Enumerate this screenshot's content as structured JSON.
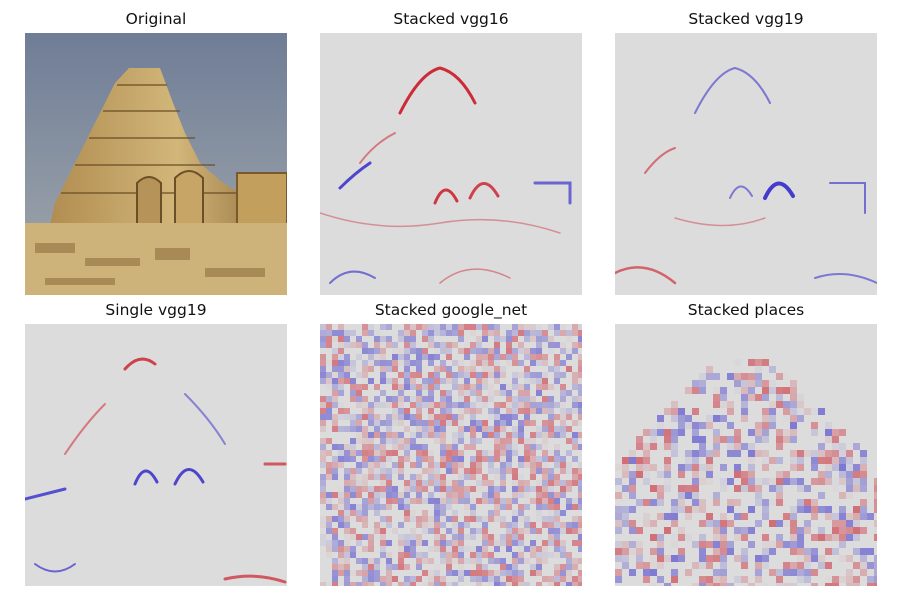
{
  "panels": [
    {
      "title": "Original"
    },
    {
      "title": "Stacked vgg16"
    },
    {
      "title": "Stacked vgg19"
    },
    {
      "title": "Single vgg19"
    },
    {
      "title": "Stacked google_net"
    },
    {
      "title": "Stacked places"
    }
  ],
  "colors": {
    "heatmap_background": "#dcdcdc",
    "positive": "#c8000f",
    "negative": "#1e14c8",
    "sky": "#7f8ba1",
    "sandstone": "#c2a263"
  }
}
